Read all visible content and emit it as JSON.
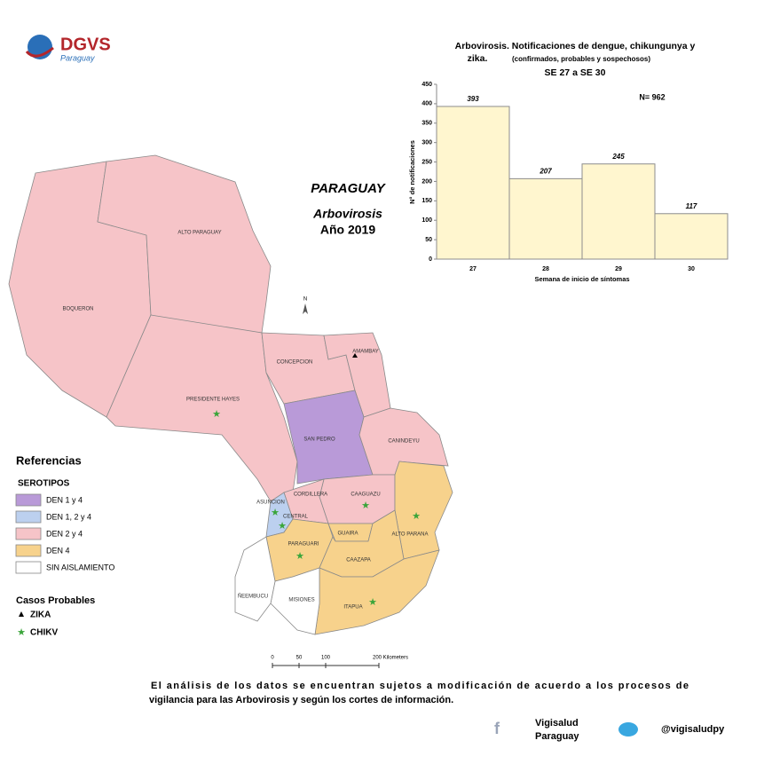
{
  "header": {
    "logo": "DGVS",
    "logo_sub": "Paraguay"
  },
  "map": {
    "title": "PARAGUAY",
    "subtitle": "Arbovirosis",
    "year": "Año 2019",
    "north": "N",
    "regions": [
      "BOQUERON",
      "ALTO PARAGUAY",
      "PRESIDENTE HAYES",
      "CONCEPCION",
      "AMAMBAY",
      "SAN PEDRO",
      "CANINDEYU",
      "CORDILLERA",
      "CAAGUAZU",
      "ASUNCION",
      "CENTRAL",
      "GUAIRA",
      "ALTO PARANA",
      "PARAGUARI",
      "CAAZAPA",
      "ITAPUA",
      "ÑEEMBUCU",
      "MISIONES"
    ],
    "scale": [
      "0",
      "50",
      "100",
      "200 Kilometers"
    ]
  },
  "legend": {
    "title": "Referencias",
    "serotipos_title": "SEROTIPOS",
    "items": [
      {
        "label": "DEN 1 y 4",
        "color": "#b99ad8"
      },
      {
        "label": "DEN 1, 2 y 4",
        "color": "#bcd0ef"
      },
      {
        "label": "DEN 2 y 4",
        "color": "#f6c4c8"
      },
      {
        "label": "DEN 4",
        "color": "#f7d28c"
      },
      {
        "label": "SIN AISLAMIENTO",
        "color": "#ffffff"
      }
    ],
    "casos_title": "Casos Probables",
    "zika": "ZIKA",
    "chikv": "CHIKV"
  },
  "chart_data": {
    "type": "bar",
    "title": "Arbovirosis. Notificaciones de dengue, chikungunya y",
    "title2": "zika.",
    "subtitle": "(confirmados, probables y sospechosos)",
    "subtitle2": "SE 27 a SE 30",
    "annotation": "N= 962",
    "x_label": "Semana de inicio de síntomas",
    "y_label": "N° de notificaciones",
    "categories": [
      "27",
      "28",
      "29",
      "30"
    ],
    "values": [
      393,
      207,
      245,
      117
    ],
    "color": "#fff6cf",
    "ylim": [
      0,
      450
    ],
    "yticks": [
      0,
      50,
      100,
      150,
      200,
      250,
      300,
      350,
      400,
      450
    ]
  },
  "footer": {
    "note_line1": "El análisis de los datos se encuentran sujetos a modificación de acuerdo a los procesos de",
    "note_line2": "vigilancia para las Arbovirosis y según los cortes de información.",
    "facebook": [
      "Vigisalud",
      "Paraguay"
    ],
    "twitter": "@vigisaludpy"
  }
}
